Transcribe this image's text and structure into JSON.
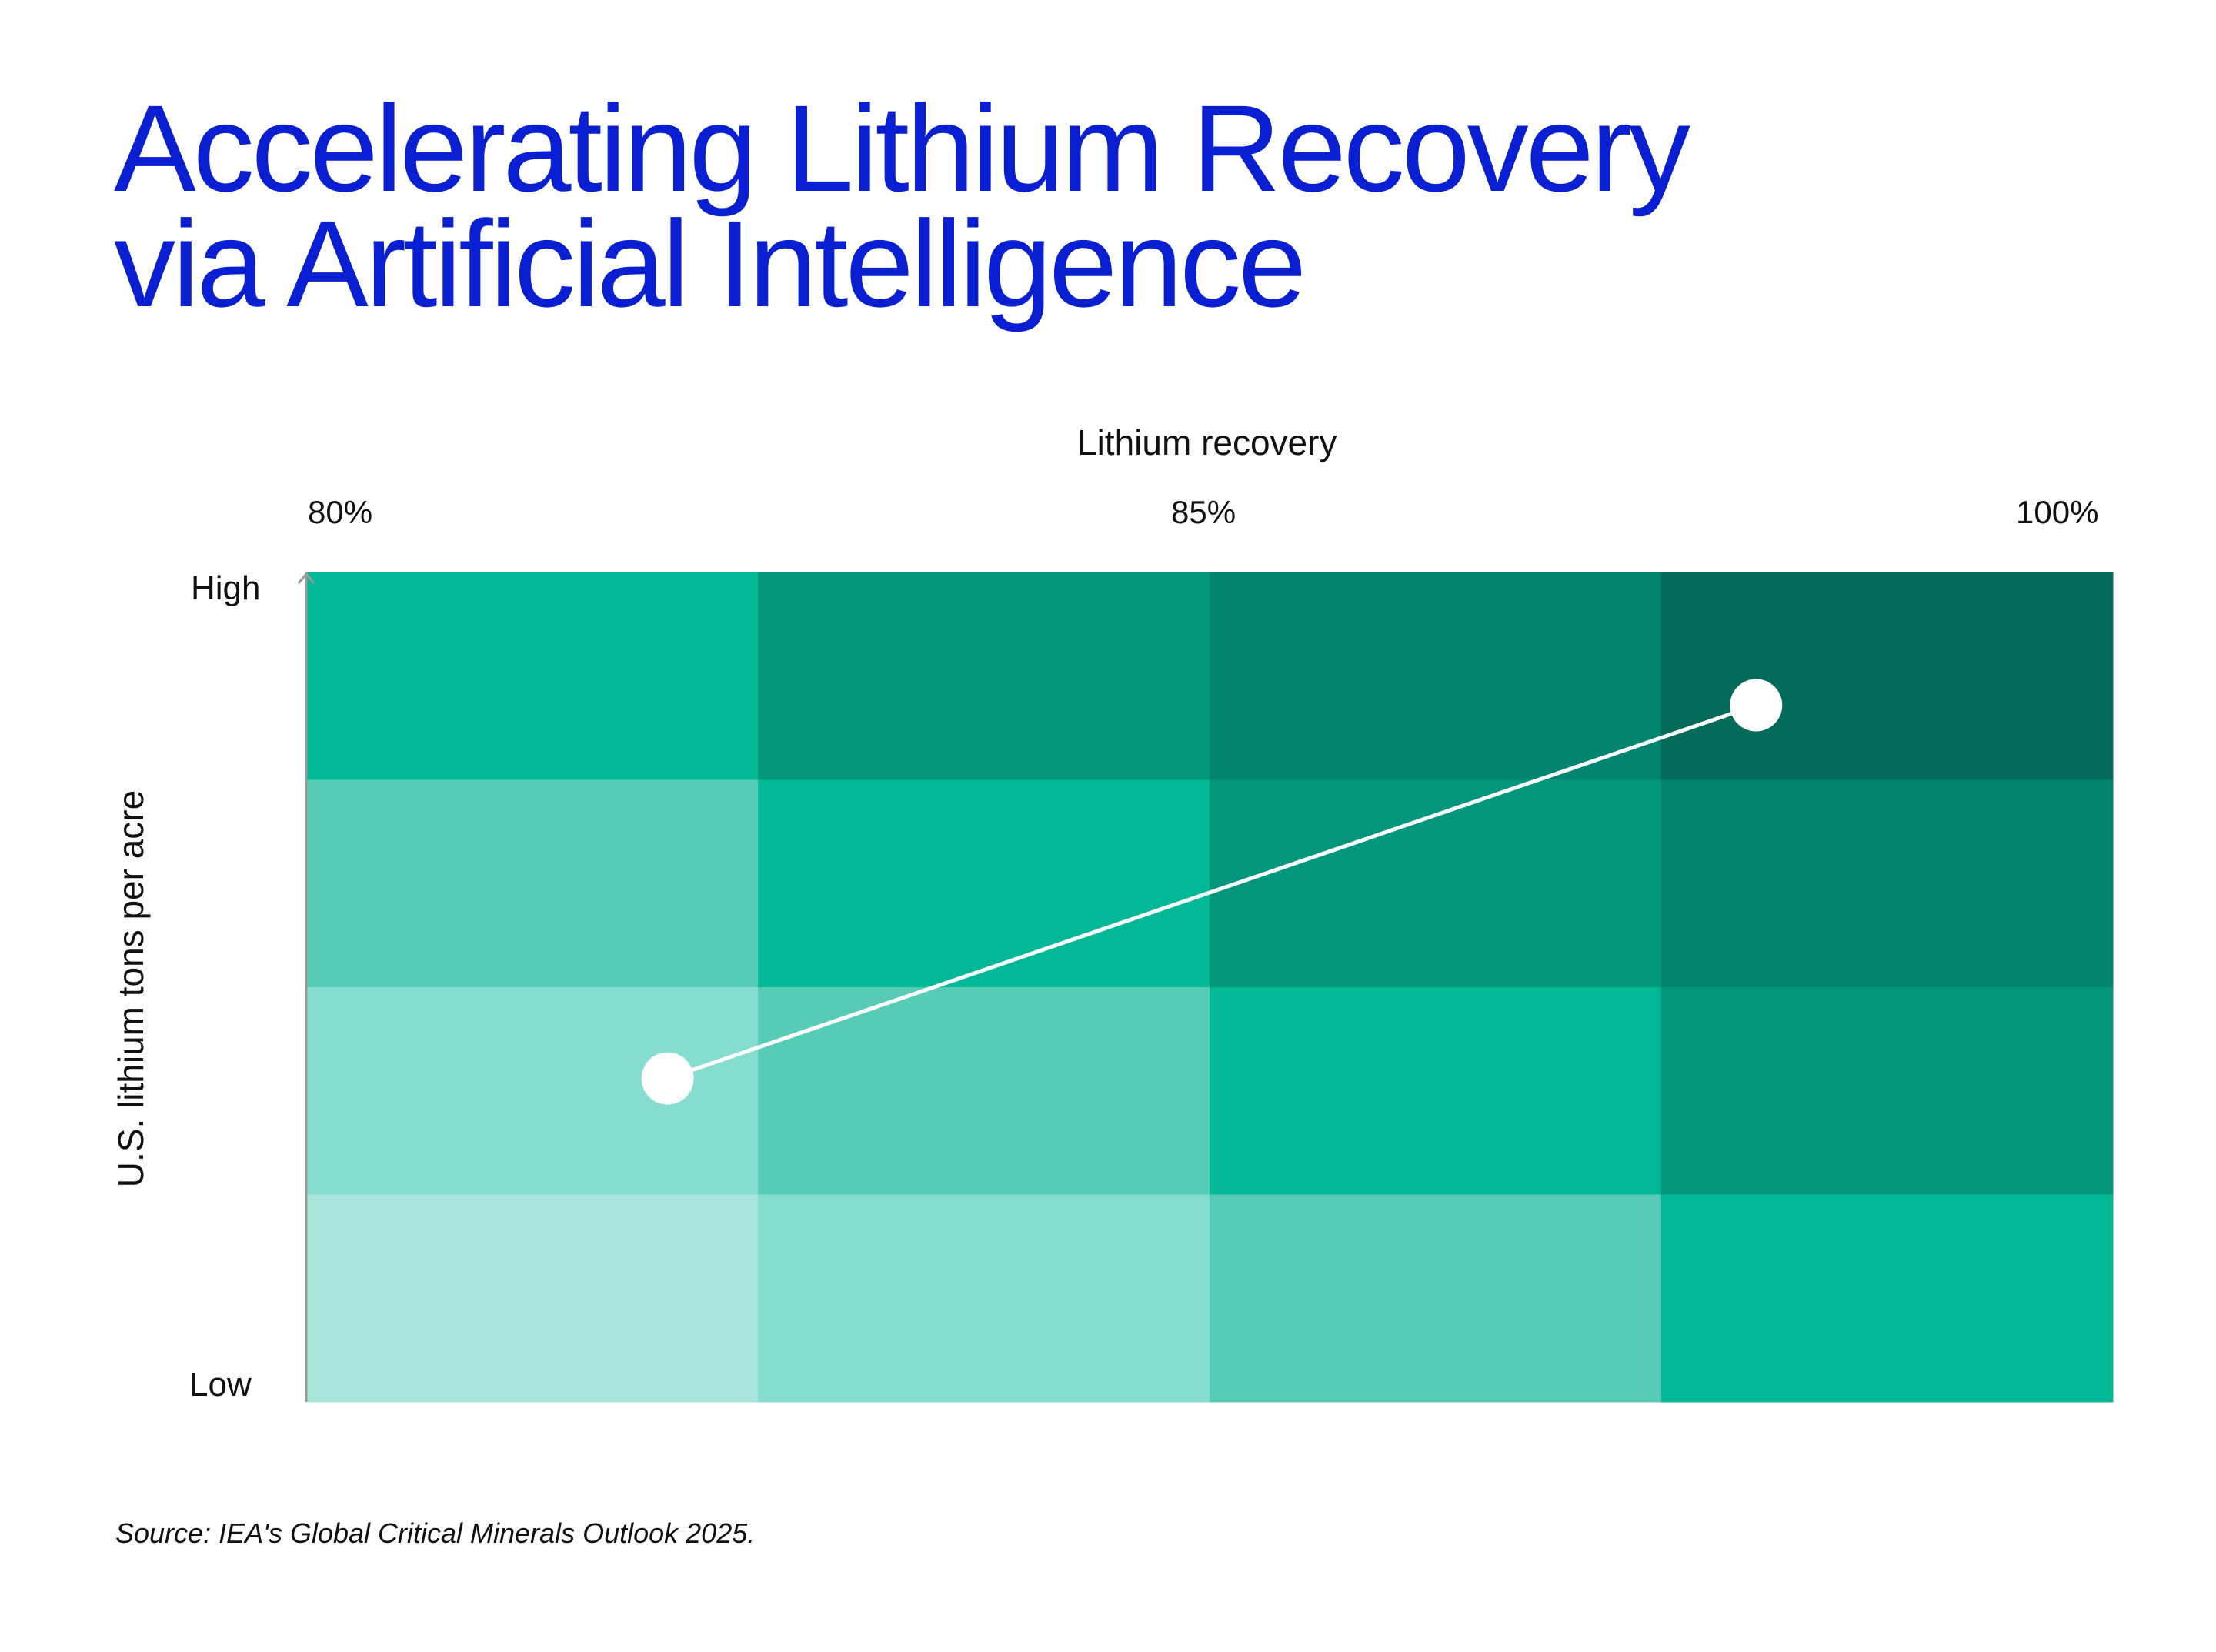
{
  "title": [
    "Accelerating Lithium Recovery",
    "via Artificial Intelligence"
  ],
  "chart_data": {
    "type": "heatmap",
    "xlabel": "Lithium recovery",
    "x_ticks": [
      "80%",
      "85%",
      "100%"
    ],
    "ylabel": "U.S. lithium tons per acre",
    "y_ticks": [
      "High",
      "Low"
    ],
    "rows_top_to_bottom": [
      [
        3,
        4,
        5,
        6
      ],
      [
        2,
        3,
        4,
        5
      ],
      [
        1,
        2,
        3,
        4
      ],
      [
        0,
        1,
        2,
        3
      ]
    ],
    "color_scale": [
      "#a8e6dc",
      "#84ddcf",
      "#56cbb5",
      "#03b896",
      "#02977d",
      "#018571",
      "#046b5b"
    ],
    "overlay_line": {
      "points": [
        {
          "col": 0.8,
          "row_from_top": 2.44
        },
        {
          "col": 3.21,
          "row_from_top": 0.64
        }
      ],
      "color": "#ffffff"
    },
    "source": "Source: IEA's Global Critical Minerals Outlook 2025."
  }
}
